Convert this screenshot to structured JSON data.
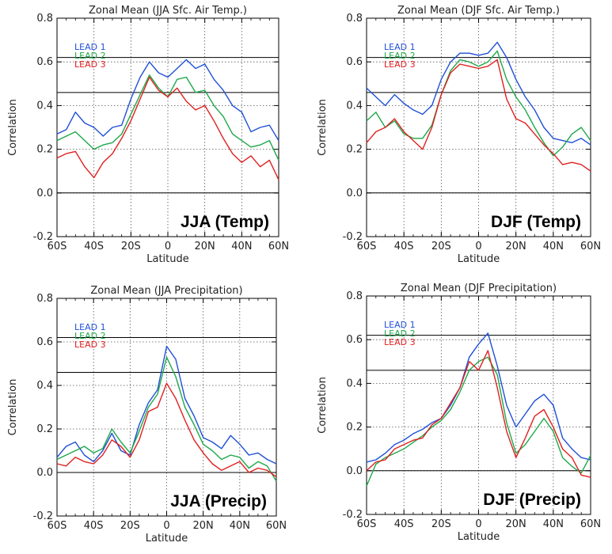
{
  "chart_data": [
    {
      "type": "line",
      "title": "Zonal Mean (JJA Sfc. Air Temp.)",
      "xlabel": "Latitude",
      "ylabel": "Correlation",
      "xlim": [
        -60,
        60
      ],
      "ylim": [
        -0.2,
        0.8
      ],
      "x_ticks": [
        -60,
        -40,
        -20,
        0,
        20,
        40,
        60
      ],
      "x_tick_labels": [
        "60S",
        "40S",
        "20S",
        "0",
        "20N",
        "40N",
        "60N"
      ],
      "y_ticks": [
        -0.2,
        0.0,
        0.2,
        0.4,
        0.6,
        0.8
      ],
      "y_tick_labels": [
        "-0.2",
        "0.0",
        "0.2",
        "0.4",
        "0.6",
        "0.8"
      ],
      "grid": true,
      "legend_position": "top-left",
      "reference_lines": [
        0.0,
        0.46,
        0.62
      ],
      "corner_label": "JJA (Temp)",
      "x": [
        -60,
        -55,
        -50,
        -45,
        -40,
        -35,
        -30,
        -25,
        -20,
        -15,
        -10,
        -5,
        0,
        5,
        10,
        15,
        20,
        25,
        30,
        35,
        40,
        45,
        50,
        55,
        60
      ],
      "series": [
        {
          "name": "LEAD 1",
          "color": "#1f4fd6",
          "values": [
            0.27,
            0.29,
            0.37,
            0.32,
            0.3,
            0.26,
            0.3,
            0.31,
            0.43,
            0.53,
            0.6,
            0.55,
            0.53,
            0.57,
            0.61,
            0.57,
            0.59,
            0.52,
            0.47,
            0.4,
            0.37,
            0.28,
            0.3,
            0.31,
            0.24
          ]
        },
        {
          "name": "LEAD 2",
          "color": "#1ea84a",
          "values": [
            0.24,
            0.26,
            0.28,
            0.24,
            0.2,
            0.22,
            0.23,
            0.27,
            0.36,
            0.45,
            0.54,
            0.48,
            0.44,
            0.52,
            0.53,
            0.46,
            0.47,
            0.4,
            0.35,
            0.27,
            0.24,
            0.21,
            0.22,
            0.24,
            0.15
          ]
        },
        {
          "name": "LEAD 3",
          "color": "#e02020",
          "values": [
            0.16,
            0.18,
            0.19,
            0.12,
            0.07,
            0.14,
            0.18,
            0.25,
            0.33,
            0.43,
            0.53,
            0.47,
            0.44,
            0.48,
            0.42,
            0.38,
            0.4,
            0.33,
            0.25,
            0.18,
            0.14,
            0.17,
            0.12,
            0.15,
            0.06
          ]
        }
      ]
    },
    {
      "type": "line",
      "title": "Zonal Mean (DJF Sfc. Air Temp.)",
      "xlabel": "Latitude",
      "ylabel": "Correlation",
      "xlim": [
        -60,
        60
      ],
      "ylim": [
        -0.2,
        0.8
      ],
      "x_ticks": [
        -60,
        -40,
        -20,
        0,
        20,
        40,
        60
      ],
      "x_tick_labels": [
        "60S",
        "40S",
        "20S",
        "0",
        "20N",
        "40N",
        "60N"
      ],
      "y_ticks": [
        -0.2,
        0.0,
        0.2,
        0.4,
        0.6,
        0.8
      ],
      "y_tick_labels": [
        "-0.2",
        "0.0",
        "0.2",
        "0.4",
        "0.6",
        "0.8"
      ],
      "grid": true,
      "legend_position": "top-left",
      "reference_lines": [
        0.0,
        0.46,
        0.62
      ],
      "corner_label": "DJF (Temp)",
      "x": [
        -60,
        -55,
        -50,
        -45,
        -40,
        -35,
        -30,
        -25,
        -20,
        -15,
        -10,
        -5,
        0,
        5,
        10,
        15,
        20,
        25,
        30,
        35,
        40,
        45,
        50,
        55,
        60
      ],
      "series": [
        {
          "name": "LEAD 1",
          "color": "#1f4fd6",
          "values": [
            0.48,
            0.44,
            0.4,
            0.45,
            0.41,
            0.38,
            0.36,
            0.4,
            0.52,
            0.6,
            0.64,
            0.64,
            0.63,
            0.64,
            0.69,
            0.62,
            0.52,
            0.44,
            0.38,
            0.3,
            0.25,
            0.24,
            0.23,
            0.25,
            0.22
          ]
        },
        {
          "name": "LEAD 2",
          "color": "#1ea84a",
          "values": [
            0.33,
            0.37,
            0.3,
            0.33,
            0.27,
            0.25,
            0.25,
            0.31,
            0.45,
            0.56,
            0.61,
            0.6,
            0.58,
            0.6,
            0.65,
            0.52,
            0.44,
            0.38,
            0.3,
            0.23,
            0.17,
            0.21,
            0.27,
            0.3,
            0.24
          ]
        },
        {
          "name": "LEAD 3",
          "color": "#e02020",
          "values": [
            0.23,
            0.28,
            0.3,
            0.34,
            0.28,
            0.24,
            0.2,
            0.3,
            0.45,
            0.55,
            0.59,
            0.58,
            0.57,
            0.58,
            0.61,
            0.43,
            0.34,
            0.32,
            0.27,
            0.22,
            0.18,
            0.13,
            0.14,
            0.13,
            0.1
          ]
        }
      ]
    },
    {
      "type": "line",
      "title": "Zonal Mean (JJA Precipitation)",
      "xlabel": "Latitude",
      "ylabel": "Correlation",
      "xlim": [
        -60,
        60
      ],
      "ylim": [
        -0.2,
        0.8
      ],
      "x_ticks": [
        -60,
        -40,
        -20,
        0,
        20,
        40,
        60
      ],
      "x_tick_labels": [
        "60S",
        "40S",
        "20S",
        "0",
        "20N",
        "40N",
        "60N"
      ],
      "y_ticks": [
        -0.2,
        0.0,
        0.2,
        0.4,
        0.6,
        0.8
      ],
      "y_tick_labels": [
        "-0.2",
        "0.0",
        "0.2",
        "0.4",
        "0.6",
        "0.8"
      ],
      "grid": true,
      "legend_position": "top-left",
      "reference_lines": [
        0.0,
        0.46,
        0.62
      ],
      "corner_label": "JJA (Precip)",
      "x": [
        -60,
        -55,
        -50,
        -45,
        -40,
        -35,
        -30,
        -25,
        -20,
        -15,
        -10,
        -5,
        0,
        5,
        10,
        15,
        20,
        25,
        30,
        35,
        40,
        45,
        50,
        55,
        60
      ],
      "series": [
        {
          "name": "LEAD 1",
          "color": "#1f4fd6",
          "values": [
            0.07,
            0.12,
            0.14,
            0.08,
            0.05,
            0.1,
            0.18,
            0.1,
            0.08,
            0.22,
            0.32,
            0.38,
            0.58,
            0.52,
            0.34,
            0.26,
            0.16,
            0.14,
            0.11,
            0.17,
            0.13,
            0.08,
            0.09,
            0.06,
            0.04
          ]
        },
        {
          "name": "LEAD 2",
          "color": "#1ea84a",
          "values": [
            0.06,
            0.08,
            0.1,
            0.12,
            0.09,
            0.11,
            0.2,
            0.14,
            0.09,
            0.19,
            0.3,
            0.36,
            0.53,
            0.44,
            0.3,
            0.22,
            0.13,
            0.1,
            0.06,
            0.08,
            0.07,
            0.02,
            0.05,
            0.03,
            -0.04
          ]
        },
        {
          "name": "LEAD 3",
          "color": "#e02020",
          "values": [
            0.04,
            0.03,
            0.07,
            0.05,
            0.04,
            0.08,
            0.15,
            0.12,
            0.07,
            0.15,
            0.28,
            0.3,
            0.41,
            0.34,
            0.24,
            0.15,
            0.09,
            0.04,
            0.01,
            0.03,
            0.05,
            0.0,
            0.02,
            0.01,
            -0.02
          ]
        }
      ]
    },
    {
      "type": "line",
      "title": "Zonal Mean (DJF Precipitation)",
      "xlabel": "Latitude",
      "ylabel": "Correlation",
      "xlim": [
        -60,
        60
      ],
      "ylim": [
        -0.2,
        0.8
      ],
      "x_ticks": [
        -60,
        -40,
        -20,
        0,
        20,
        40,
        60
      ],
      "x_tick_labels": [
        "60S",
        "40S",
        "20S",
        "0",
        "20N",
        "40N",
        "60N"
      ],
      "y_ticks": [
        -0.2,
        0.0,
        0.2,
        0.4,
        0.6,
        0.8
      ],
      "y_tick_labels": [
        "-0.2",
        "0.0",
        "0.2",
        "0.4",
        "0.6",
        "0.8"
      ],
      "grid": true,
      "legend_position": "top-left",
      "reference_lines": [
        0.0,
        0.46,
        0.62
      ],
      "corner_label": "DJF (Precip)",
      "x": [
        -60,
        -55,
        -50,
        -45,
        -40,
        -35,
        -30,
        -25,
        -20,
        -15,
        -10,
        -5,
        0,
        5,
        10,
        15,
        20,
        25,
        30,
        35,
        40,
        45,
        50,
        55,
        60
      ],
      "series": [
        {
          "name": "LEAD 1",
          "color": "#1f4fd6",
          "values": [
            0.04,
            0.05,
            0.08,
            0.12,
            0.14,
            0.17,
            0.19,
            0.22,
            0.24,
            0.3,
            0.38,
            0.52,
            0.58,
            0.63,
            0.48,
            0.3,
            0.2,
            0.26,
            0.32,
            0.35,
            0.3,
            0.15,
            0.1,
            0.06,
            0.05
          ]
        },
        {
          "name": "LEAD 2",
          "color": "#1ea84a",
          "values": [
            -0.07,
            0.03,
            0.06,
            0.08,
            0.1,
            0.13,
            0.16,
            0.2,
            0.23,
            0.28,
            0.36,
            0.46,
            0.5,
            0.52,
            0.44,
            0.22,
            0.08,
            0.12,
            0.18,
            0.24,
            0.18,
            0.06,
            0.02,
            -0.01,
            0.07
          ]
        },
        {
          "name": "LEAD 3",
          "color": "#e02020",
          "values": [
            0.0,
            0.04,
            0.05,
            0.1,
            0.12,
            0.14,
            0.15,
            0.21,
            0.24,
            0.31,
            0.38,
            0.5,
            0.46,
            0.55,
            0.38,
            0.18,
            0.06,
            0.15,
            0.25,
            0.28,
            0.2,
            0.1,
            0.06,
            -0.02,
            -0.03
          ]
        }
      ]
    }
  ]
}
